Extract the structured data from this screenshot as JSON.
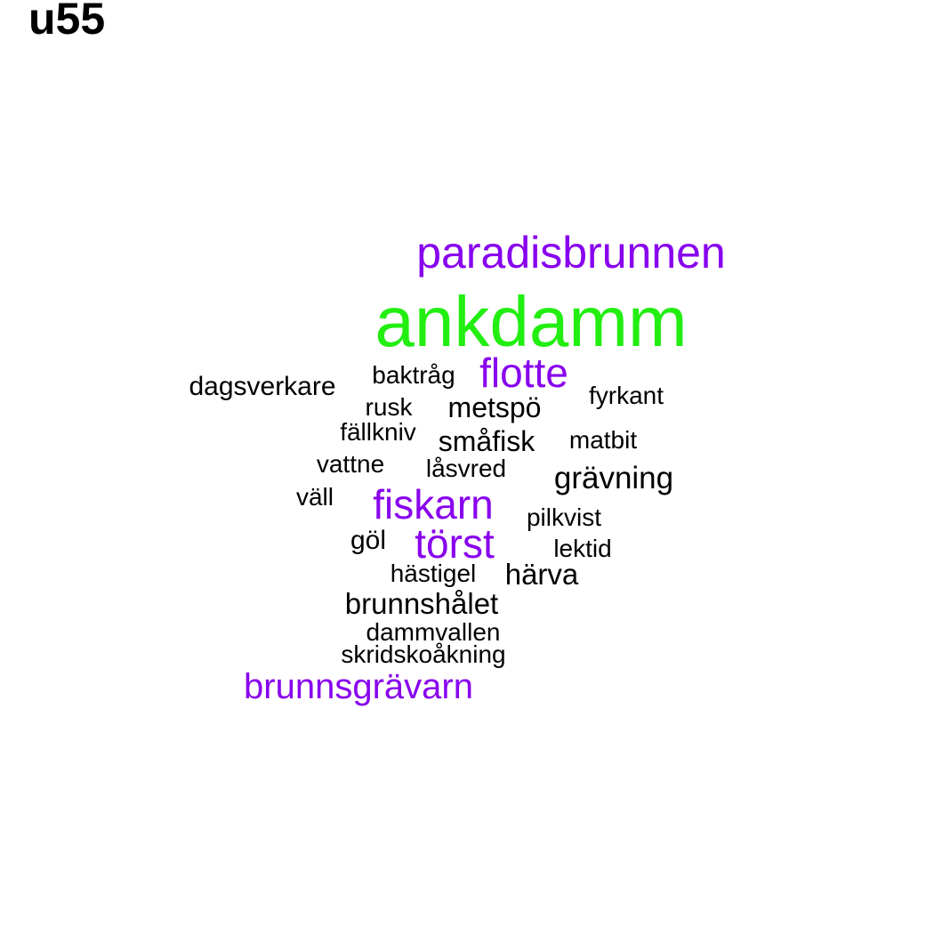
{
  "title": "u55",
  "colors": {
    "top": "#22ee11",
    "high": "#8800ee",
    "normal": "#000000"
  },
  "words": [
    {
      "text": "ankdamm",
      "tier": "top"
    },
    {
      "text": "paradisbrunnen",
      "tier": "high"
    },
    {
      "text": "flotte",
      "tier": "high"
    },
    {
      "text": "fiskarn",
      "tier": "high"
    },
    {
      "text": "törst",
      "tier": "high"
    },
    {
      "text": "brunnsgrävarn",
      "tier": "high"
    },
    {
      "text": "dagsverkare",
      "tier": "normal"
    },
    {
      "text": "baktråg",
      "tier": "normal"
    },
    {
      "text": "fyrkant",
      "tier": "normal"
    },
    {
      "text": "rusk",
      "tier": "normal"
    },
    {
      "text": "metspö",
      "tier": "normal"
    },
    {
      "text": "fällkniv",
      "tier": "normal"
    },
    {
      "text": "småfisk",
      "tier": "normal"
    },
    {
      "text": "matbit",
      "tier": "normal"
    },
    {
      "text": "vattne",
      "tier": "normal"
    },
    {
      "text": "låsvred",
      "tier": "normal"
    },
    {
      "text": "grävning",
      "tier": "normal"
    },
    {
      "text": "väll",
      "tier": "normal"
    },
    {
      "text": "pilkvist",
      "tier": "normal"
    },
    {
      "text": "göl",
      "tier": "normal"
    },
    {
      "text": "lektid",
      "tier": "normal"
    },
    {
      "text": "hästigel",
      "tier": "normal"
    },
    {
      "text": "härva",
      "tier": "normal"
    },
    {
      "text": "brunnshålet",
      "tier": "normal"
    },
    {
      "text": "dammvallen",
      "tier": "normal"
    },
    {
      "text": "skridskoåkning",
      "tier": "normal"
    }
  ]
}
